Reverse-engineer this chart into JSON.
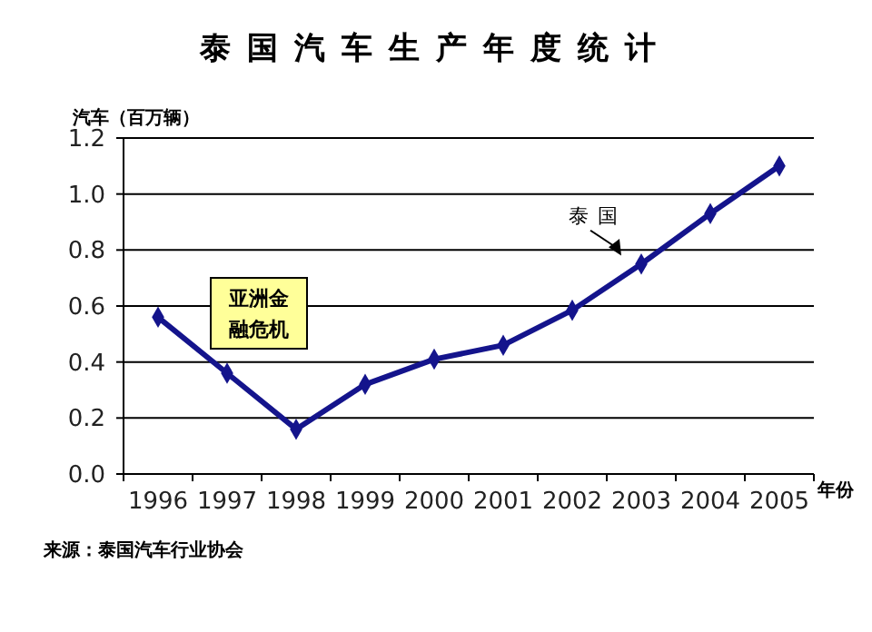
{
  "chart_data": {
    "type": "line",
    "title": "泰国汽车生产年度统计",
    "ylabel": "汽车（百万辆）",
    "xlabel": "年份",
    "categories": [
      "1996",
      "1997",
      "1998",
      "1999",
      "2000",
      "2001",
      "2002",
      "2003",
      "2004",
      "2005"
    ],
    "series": [
      {
        "name": "泰国",
        "color": "#14148c",
        "values": [
          0.56,
          0.36,
          0.16,
          0.32,
          0.41,
          0.46,
          0.585,
          0.75,
          0.93,
          1.1
        ]
      }
    ],
    "ylim": [
      0,
      1.2
    ],
    "yticks": [
      {
        "value": 0,
        "label": "0.0"
      },
      {
        "value": 0.2,
        "label": "0.2"
      },
      {
        "value": 0.4,
        "label": "0.4"
      },
      {
        "value": 0.6,
        "label": "0.6"
      },
      {
        "value": 0.8,
        "label": "0.8"
      },
      {
        "value": 1,
        "label": "1.0"
      },
      {
        "value": 1.2,
        "label": "1.2"
      }
    ],
    "grid": "y",
    "marker": "diamond",
    "line_style": "solid",
    "annotations": [
      "亚洲金融危机",
      "来源：泰国汽车行业协会"
    ]
  }
}
